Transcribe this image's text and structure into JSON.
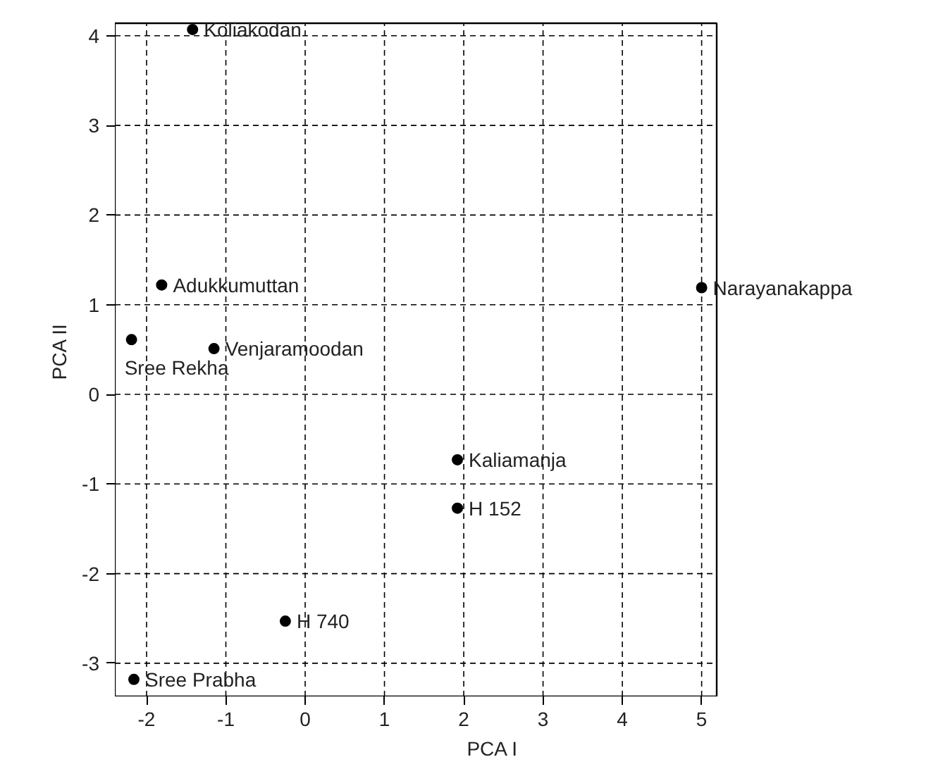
{
  "chart_data": {
    "type": "scatter",
    "xlabel": "PCA I",
    "ylabel": "PCA II",
    "x": [
      -1.42,
      -1.81,
      5.0,
      -2.19,
      -1.15,
      1.92,
      1.92,
      -0.25,
      -2.16
    ],
    "series": [
      {
        "color": "#000000",
        "values": [
          4.07,
          1.22,
          1.19,
          0.61,
          0.51,
          -0.73,
          -1.27,
          -2.53,
          -3.18
        ]
      }
    ],
    "annotations": [
      {
        "text": "Koliakodan",
        "x": -1.42,
        "y": 4.07
      },
      {
        "text": "Adukkumuttan",
        "x": -1.81,
        "y": 1.22
      },
      {
        "text": "Narayanakappa",
        "x": 5.0,
        "y": 1.19
      },
      {
        "text": "Sree Rekha",
        "x": -2.19,
        "y": 0.61
      },
      {
        "text": "Venjaramoodan",
        "x": -1.15,
        "y": 0.51
      },
      {
        "text": "Kaliamanja",
        "x": 1.92,
        "y": -0.73
      },
      {
        "text": "H 152",
        "x": 1.92,
        "y": -1.27
      },
      {
        "text": "H 740",
        "x": -0.25,
        "y": -2.53
      },
      {
        "text": "Sree Prabha",
        "x": -2.16,
        "y": -3.18
      }
    ],
    "xlim": [
      -2.4,
      5.19
    ],
    "ylim": [
      -3.37,
      4.14
    ],
    "xticks": [
      -2,
      -1,
      0,
      1,
      2,
      3,
      4,
      5
    ],
    "yticks": [
      -3,
      -2,
      -1,
      0,
      1,
      2,
      3,
      4
    ],
    "grid": true,
    "marker": "circle"
  }
}
